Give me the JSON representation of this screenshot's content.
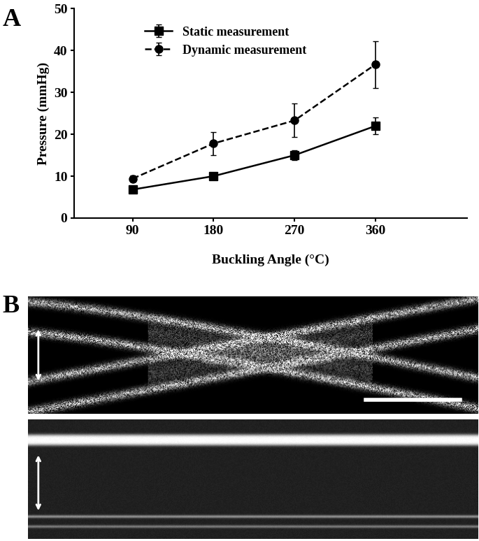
{
  "chart_data": {
    "type": "line",
    "x_label": "Buckling Angle (°C)",
    "y_label": "Pressure (mmHg)",
    "categories": [
      "90",
      "180",
      "270",
      "360"
    ],
    "series": [
      {
        "name": "Static measurement",
        "color": "#000000",
        "marker": "square",
        "line_style": "solid",
        "values": [
          6.8,
          10.0,
          15.0,
          22.0
        ],
        "errors": [
          0.3,
          0.5,
          1.2,
          2.0
        ]
      },
      {
        "name": "Dynamic measurement",
        "color": "#000000",
        "marker": "circle",
        "line_style": "dashed",
        "values": [
          9.4,
          17.8,
          23.3,
          36.7
        ],
        "errors": [
          0.7,
          2.8,
          4.0,
          5.6
        ]
      }
    ],
    "ylim": [
      0,
      50
    ],
    "yticks": [
      0,
      10,
      20,
      30,
      40,
      50
    ],
    "grid": false,
    "legend": "upper left"
  },
  "figure": {
    "panel_labels": [
      "A",
      "B"
    ]
  }
}
